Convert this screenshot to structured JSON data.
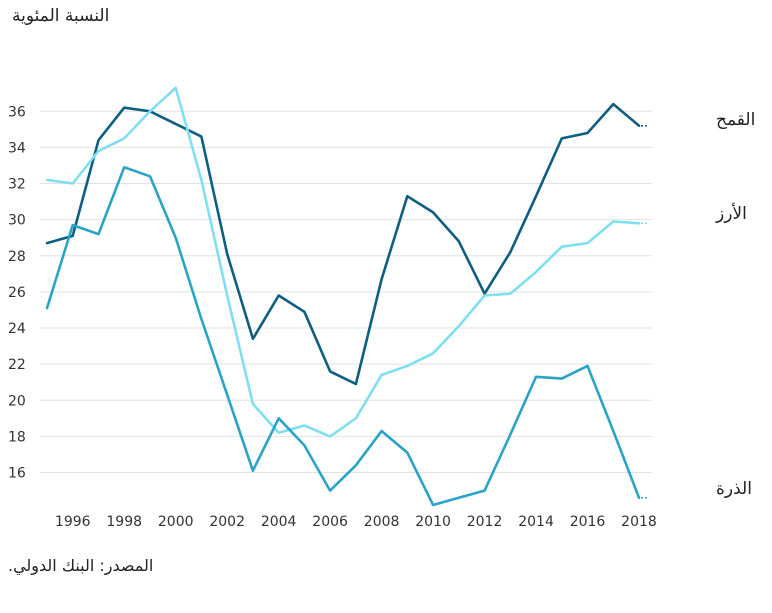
{
  "chart_data": {
    "type": "line",
    "ylabel": "النسبة المئوية",
    "xlabel": "",
    "source": "المصدر: البنك الدولي.",
    "x": [
      1995,
      1996,
      1997,
      1998,
      1999,
      2000,
      2001,
      2002,
      2003,
      2004,
      2005,
      2006,
      2007,
      2008,
      2009,
      2010,
      2011,
      2012,
      2013,
      2014,
      2015,
      2016,
      2017,
      2018
    ],
    "x_ticks": [
      "1996",
      "1998",
      "2000",
      "2002",
      "2004",
      "2006",
      "2008",
      "2010",
      "2012",
      "2014",
      "2016",
      "2018"
    ],
    "y_ticks": [
      "16",
      "18",
      "20",
      "22",
      "24",
      "26",
      "28",
      "30",
      "32",
      "34",
      "36"
    ],
    "ylim": [
      14.2,
      37.4
    ],
    "grid": true,
    "legend": "right, labels at line ends",
    "series": [
      {
        "name": "القمح",
        "color": "#0d5e80",
        "values": [
          28.7,
          29.1,
          34.4,
          36.2,
          36.0,
          35.3,
          34.6,
          28.1,
          23.4,
          25.8,
          24.9,
          21.6,
          20.9,
          26.7,
          31.3,
          30.4,
          28.8,
          25.9,
          28.2,
          31.3,
          34.5,
          34.8,
          36.4,
          35.2
        ]
      },
      {
        "name": "الأرز",
        "color": "#7fdff0",
        "values": [
          32.2,
          32.0,
          33.8,
          34.5,
          36.0,
          37.3,
          32.2,
          25.8,
          19.8,
          18.2,
          18.6,
          18.0,
          19.0,
          21.4,
          21.9,
          22.6,
          24.1,
          25.8,
          25.9,
          27.1,
          28.5,
          28.7,
          29.9,
          29.8
        ]
      },
      {
        "name": "الذرة",
        "color": "#2aa3c7",
        "values": [
          25.1,
          29.7,
          29.2,
          32.9,
          32.4,
          29.0,
          24.5,
          20.3,
          16.1,
          19.0,
          17.5,
          15.0,
          16.4,
          18.3,
          17.1,
          14.2,
          14.6,
          15.0,
          18.1,
          21.3,
          21.2,
          21.9,
          18.3,
          14.6
        ]
      }
    ]
  }
}
